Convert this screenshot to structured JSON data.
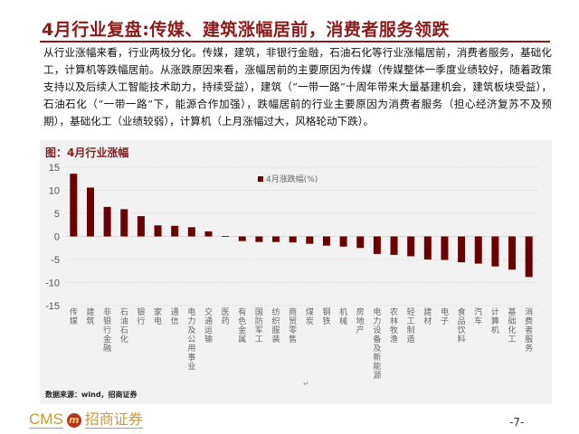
{
  "header": {
    "title": "4月行业复盘:传媒、建筑涨幅居前，消费者服务领跌"
  },
  "body_text": "从行业涨幅来看，行业两极分化。传媒，建筑，非银行金融，石油石化等行业涨幅居前，消费者服务，基础化工，计算机等跌幅居前。从涨跌原因来看，涨幅居前的主要原因为传媒（传媒整体一季度业绩较好，随着政策支持以及后续人工智能技术助力，持续受益），建筑（“一带一路”十周年带来大量基建机会，建筑板块受益），石油石化（“一带一路”下，能源合作加强），跌幅居前的行业主要原因为消费者服务（担心经济复苏不及预期），基础化工（业绩较弱），计算机（上月涨幅过大，风格轮动下跌）。",
  "figure": {
    "title": "图：4月行业涨幅",
    "source": "数据来源：wind，招商证券"
  },
  "footer": {
    "logo_latin": "CMS",
    "logo_mark": "m",
    "logo_cn": "招商证券",
    "page": "-7-"
  },
  "colors": {
    "accent": "#8b1a1a",
    "bar": "#6b0000",
    "panel_bg": "#f2f2f2",
    "logo_gold": "#c79a3a"
  },
  "chart_data": {
    "type": "bar",
    "title": "图：4月行业涨幅",
    "xlabel": "",
    "ylabel": "",
    "ylim": [
      -15,
      15
    ],
    "yticks": [
      15,
      10,
      5,
      0,
      -5,
      -10,
      -15
    ],
    "grid": true,
    "legend_position": "top-right",
    "categories": [
      "传媒",
      "建筑",
      "非银行金融",
      "石油石化",
      "银行",
      "家电",
      "通信",
      "电力及公用事业",
      "交通运输",
      "医药",
      "有色金属",
      "国防军工",
      "纺织服装",
      "商贸零售",
      "煤炭",
      "钢铁",
      "机械",
      "房地产",
      "电力设备及新能源",
      "农林牧渔",
      "轻工制造",
      "建材",
      "电子",
      "食品饮料",
      "汽车",
      "计算机",
      "基础化工",
      "消费者服务"
    ],
    "series": [
      {
        "name": "4月涨跌幅(%)",
        "values": [
          13.6,
          10.6,
          6.4,
          5.9,
          4.4,
          2.4,
          2.3,
          2.0,
          1.1,
          0.1,
          -1.0,
          -1.2,
          -1.2,
          -1.3,
          -1.6,
          -2.0,
          -2.2,
          -2.5,
          -3.8,
          -4.0,
          -4.3,
          -5.0,
          -5.1,
          -5.6,
          -5.9,
          -6.5,
          -7.2,
          -8.8
        ]
      }
    ]
  }
}
